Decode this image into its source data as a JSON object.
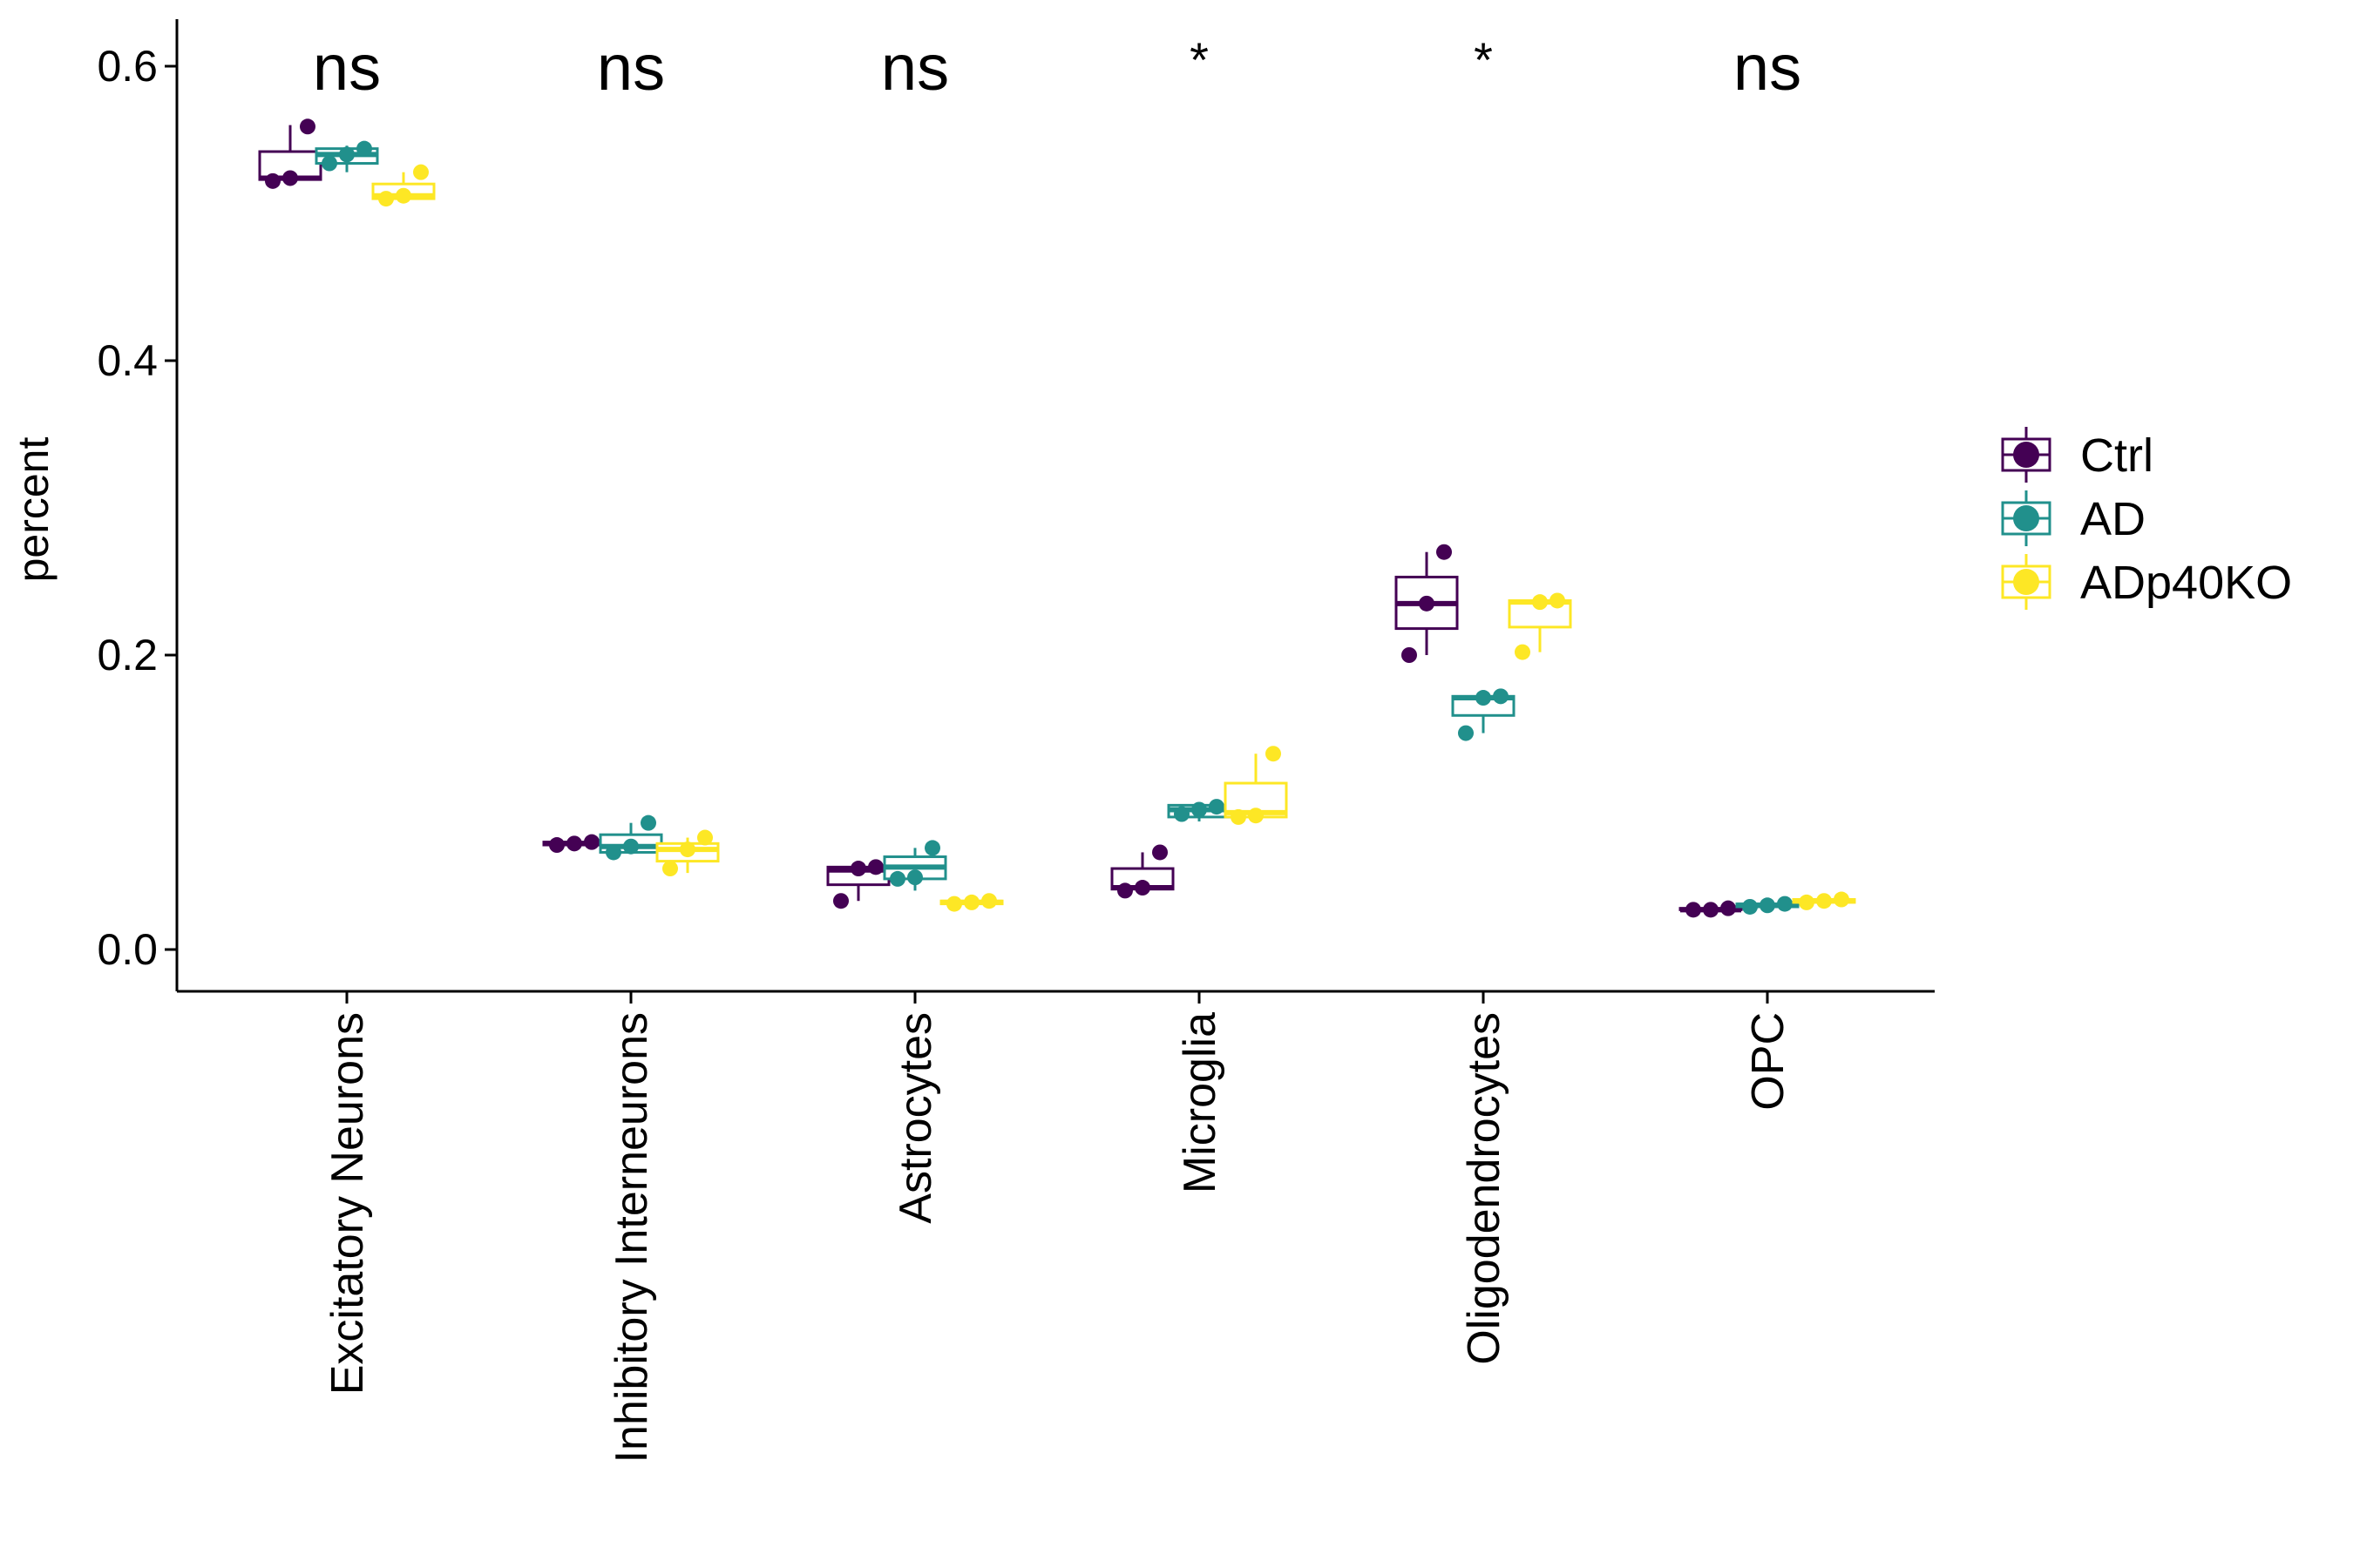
{
  "chart_data": {
    "type": "box",
    "title": "",
    "xlabel": "",
    "ylabel": "percent",
    "ylim": [
      -0.03,
      0.63
    ],
    "yticks": [
      "0.0",
      "0.2",
      "0.4",
      "0.6"
    ],
    "categories": [
      "Excitatory Neurons",
      "Inhibitory Interneurons",
      "Astrocytes",
      "Microglia",
      "Oligodendrocytes",
      "OPC"
    ],
    "significance": [
      "ns",
      "ns",
      "ns",
      "*",
      "*",
      "ns"
    ],
    "legend": {
      "position": "right"
    },
    "grid": false,
    "series": [
      {
        "name": "Ctrl",
        "color": "#440154",
        "boxes": [
          {
            "min": 0.522,
            "q1": 0.523,
            "median": 0.524,
            "q3": 0.542,
            "max": 0.56,
            "points": [
              0.522,
              0.524,
              0.559
            ]
          },
          {
            "min": 0.071,
            "q1": 0.071,
            "median": 0.072,
            "q3": 0.073,
            "max": 0.073,
            "points": [
              0.071,
              0.072,
              0.073
            ]
          },
          {
            "min": 0.033,
            "q1": 0.044,
            "median": 0.054,
            "q3": 0.056,
            "max": 0.056,
            "points": [
              0.033,
              0.055,
              0.056
            ]
          },
          {
            "min": 0.04,
            "q1": 0.041,
            "median": 0.042,
            "q3": 0.055,
            "max": 0.066,
            "points": [
              0.04,
              0.042,
              0.066
            ]
          },
          {
            "min": 0.2,
            "q1": 0.218,
            "median": 0.235,
            "q3": 0.253,
            "max": 0.27,
            "points": [
              0.2,
              0.235,
              0.27
            ]
          },
          {
            "min": 0.027,
            "q1": 0.027,
            "median": 0.027,
            "q3": 0.028,
            "max": 0.028,
            "points": [
              0.027,
              0.027,
              0.028
            ]
          }
        ]
      },
      {
        "name": "AD",
        "color": "#21908C",
        "boxes": [
          {
            "min": 0.528,
            "q1": 0.534,
            "median": 0.54,
            "q3": 0.544,
            "max": 0.546,
            "points": [
              0.534,
              0.54,
              0.544
            ]
          },
          {
            "min": 0.066,
            "q1": 0.066,
            "median": 0.07,
            "q3": 0.078,
            "max": 0.086,
            "points": [
              0.066,
              0.07,
              0.086
            ]
          },
          {
            "min": 0.04,
            "q1": 0.048,
            "median": 0.056,
            "q3": 0.063,
            "max": 0.069,
            "points": [
              0.048,
              0.049,
              0.069
            ]
          },
          {
            "min": 0.087,
            "q1": 0.09,
            "median": 0.095,
            "q3": 0.098,
            "max": 0.1,
            "points": [
              0.092,
              0.095,
              0.097
            ]
          },
          {
            "min": 0.147,
            "q1": 0.159,
            "median": 0.171,
            "q3": 0.172,
            "max": 0.172,
            "points": [
              0.147,
              0.171,
              0.172
            ]
          },
          {
            "min": 0.029,
            "q1": 0.029,
            "median": 0.03,
            "q3": 0.031,
            "max": 0.031,
            "points": [
              0.029,
              0.03,
              0.031
            ]
          }
        ]
      },
      {
        "name": "ADp40KO",
        "color": "#FDE725",
        "boxes": [
          {
            "min": 0.509,
            "q1": 0.51,
            "median": 0.512,
            "q3": 0.52,
            "max": 0.528,
            "points": [
              0.51,
              0.512,
              0.528
            ]
          },
          {
            "min": 0.052,
            "q1": 0.06,
            "median": 0.068,
            "q3": 0.072,
            "max": 0.076,
            "points": [
              0.055,
              0.068,
              0.076
            ]
          },
          {
            "min": 0.031,
            "q1": 0.031,
            "median": 0.032,
            "q3": 0.033,
            "max": 0.033,
            "points": [
              0.031,
              0.032,
              0.033
            ]
          },
          {
            "min": 0.088,
            "q1": 0.09,
            "median": 0.093,
            "q3": 0.113,
            "max": 0.133,
            "points": [
              0.09,
              0.091,
              0.133
            ]
          },
          {
            "min": 0.202,
            "q1": 0.219,
            "median": 0.236,
            "q3": 0.237,
            "max": 0.237,
            "points": [
              0.202,
              0.236,
              0.237
            ]
          },
          {
            "min": 0.032,
            "q1": 0.032,
            "median": 0.033,
            "q3": 0.034,
            "max": 0.034,
            "points": [
              0.032,
              0.033,
              0.034
            ]
          }
        ]
      }
    ]
  }
}
